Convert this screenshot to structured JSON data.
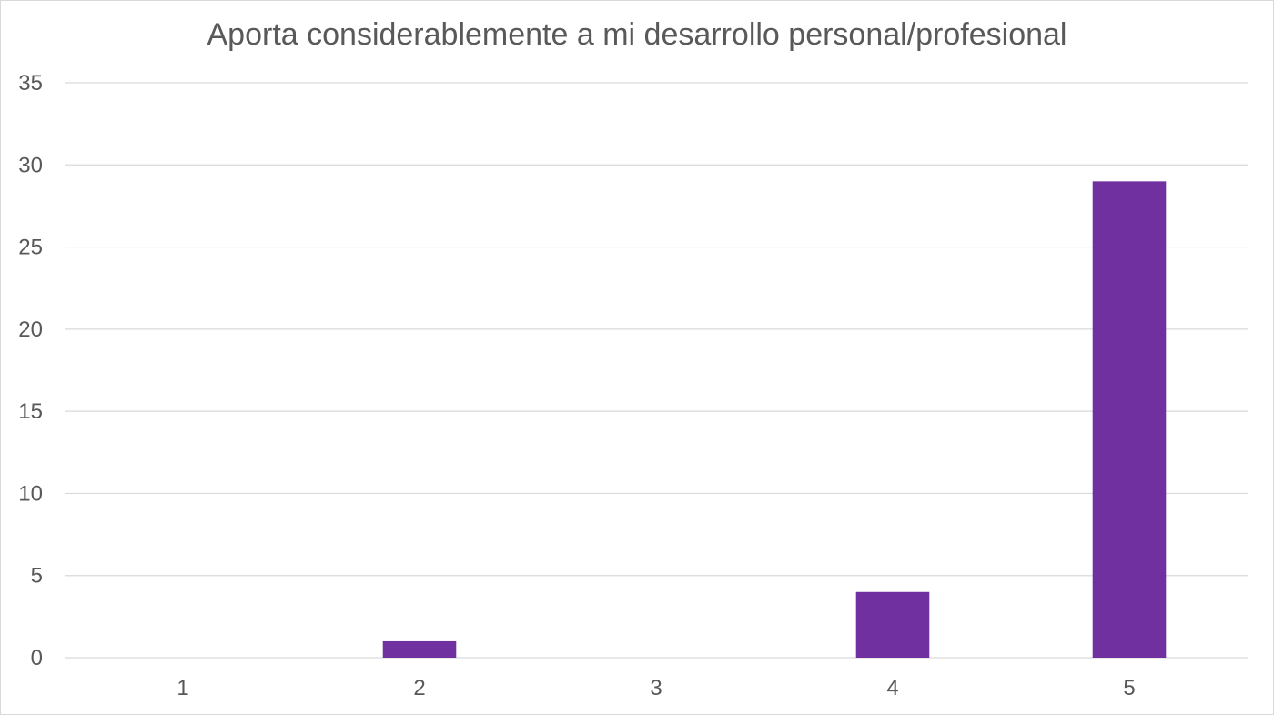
{
  "chart_data": {
    "type": "bar",
    "title": "Aporta considerablemente a mi desarrollo personal/profesional",
    "xlabel": "",
    "ylabel": "",
    "categories": [
      "1",
      "2",
      "3",
      "4",
      "5"
    ],
    "values": [
      0,
      1,
      0,
      4,
      29
    ],
    "ylim": [
      0,
      35
    ],
    "yticks": [
      0,
      5,
      10,
      15,
      20,
      25,
      30,
      35
    ],
    "grid": true,
    "legend": "none",
    "bar_color": "#7030a0",
    "grid_color": "#d9d9d9",
    "text_color": "#595959"
  }
}
